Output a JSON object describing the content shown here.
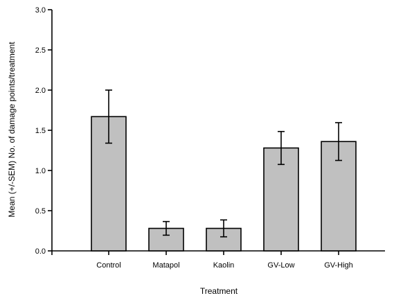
{
  "chart_data": {
    "type": "bar",
    "categories": [
      "Control",
      "Matapol",
      "Kaolin",
      "GV-Low",
      "GV-High"
    ],
    "series": [
      {
        "values": [
          1.67,
          0.28,
          0.28,
          1.28,
          1.36
        ],
        "error": [
          0.33,
          0.085,
          0.105,
          0.205,
          0.235
        ]
      }
    ],
    "xlabel": "Treatment",
    "ylabel": "Mean (+/-SEM) No. of damage points/treatment",
    "ylim": [
      0,
      3.0
    ],
    "yticks": [
      "0.0",
      "0.5",
      "1.0",
      "1.5",
      "2.0",
      "2.5",
      "3.0"
    ],
    "bar_color": "#c0c0c0",
    "grid": false,
    "legend": "none"
  }
}
